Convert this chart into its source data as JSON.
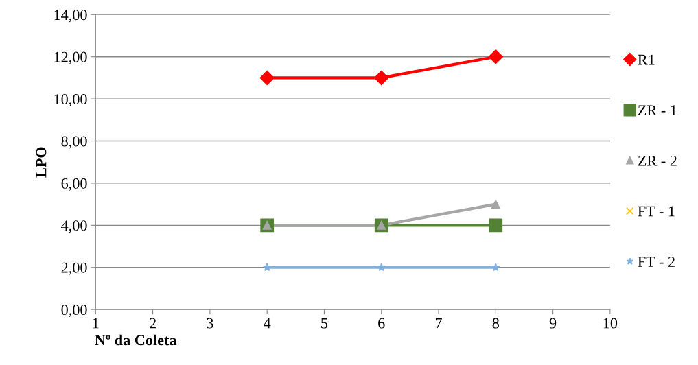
{
  "chart_data": {
    "type": "line",
    "xlabel": "Nº da Coleta",
    "ylabel": "LPO",
    "x": [
      4,
      6,
      8
    ],
    "series": [
      {
        "name": "R1",
        "color": "#ff0000",
        "marker": "diamond",
        "values": [
          11,
          11,
          12
        ]
      },
      {
        "name": "ZR - 1",
        "color": "#548235",
        "marker": "square",
        "values": [
          4,
          4,
          4
        ]
      },
      {
        "name": "ZR - 2",
        "color": "#a6a6a6",
        "marker": "triangle",
        "values": [
          4,
          4,
          5
        ]
      },
      {
        "name": "FT - 1",
        "color": "#ffc000",
        "marker": "cross",
        "values": [
          null,
          null,
          null
        ]
      },
      {
        "name": "FT - 2",
        "color": "#7fb0e0",
        "marker": "star",
        "values": [
          2,
          2,
          2
        ]
      }
    ],
    "xlim": [
      1,
      10
    ],
    "xticks": [
      1,
      2,
      3,
      4,
      5,
      6,
      7,
      8,
      9,
      10
    ],
    "ylim": [
      0,
      14
    ],
    "yticks": [
      {
        "value": 0,
        "label": "0,00"
      },
      {
        "value": 2,
        "label": "2,00"
      },
      {
        "value": 4,
        "label": "4,00"
      },
      {
        "value": 6,
        "label": "6,00"
      },
      {
        "value": 8,
        "label": "8,00"
      },
      {
        "value": 10,
        "label": "10,00"
      },
      {
        "value": 12,
        "label": "12,00"
      },
      {
        "value": 14,
        "label": "14,00"
      }
    ],
    "grid": "y",
    "legend": "right"
  }
}
